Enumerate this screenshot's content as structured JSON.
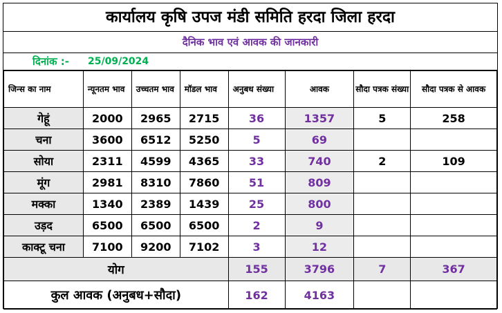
{
  "header": {
    "title": "कार्यालय कृषि उपज मंडी समिति हरदा जिला हरदा",
    "subtitle": "दैनिक भाव एवं आवक की जानकारी",
    "date_label": "दिनांक :-",
    "date_value": "25/09/2024"
  },
  "columns": [
    "जिन्स का नाम",
    "न्यूनतम भाव",
    "उच्चतम भाव",
    "मॉडल भाव",
    "अनुबध संख्या",
    "आवक",
    "सौदा पत्रक संख्या",
    "सौदा पत्रक से आवक"
  ],
  "rows": [
    {
      "name": "गेहूं",
      "min": "2000",
      "max": "2965",
      "model": "2715",
      "anubandh": "36",
      "aavak": "1357",
      "sauda_sankhya": "5",
      "sauda_aavak": "258"
    },
    {
      "name": "चना",
      "min": "3600",
      "max": "6512",
      "model": "5250",
      "anubandh": "5",
      "aavak": "69",
      "sauda_sankhya": "",
      "sauda_aavak": ""
    },
    {
      "name": "सोया",
      "min": "2311",
      "max": "4599",
      "model": "4365",
      "anubandh": "33",
      "aavak": "740",
      "sauda_sankhya": "2",
      "sauda_aavak": "109"
    },
    {
      "name": "मूंग",
      "min": "2981",
      "max": "8310",
      "model": "7860",
      "anubandh": "51",
      "aavak": "809",
      "sauda_sankhya": "",
      "sauda_aavak": ""
    },
    {
      "name": "मक्का",
      "min": "1340",
      "max": "2389",
      "model": "1439",
      "anubandh": "25",
      "aavak": "800",
      "sauda_sankhya": "",
      "sauda_aavak": ""
    },
    {
      "name": "उड़द",
      "min": "6500",
      "max": "6500",
      "model": "6500",
      "anubandh": "2",
      "aavak": "9",
      "sauda_sankhya": "",
      "sauda_aavak": ""
    },
    {
      "name": "काक्टू चना",
      "min": "7100",
      "max": "9200",
      "model": "7102",
      "anubandh": "3",
      "aavak": "12",
      "sauda_sankhya": "",
      "sauda_aavak": ""
    }
  ],
  "total": {
    "label": "योग",
    "anubandh": "155",
    "aavak": "3796",
    "sauda_sankhya": "7",
    "sauda_aavak": "367"
  },
  "grand_total": {
    "label": "कुल आवक (अनुबध+सौदा)",
    "anubandh": "162",
    "aavak": "4163"
  }
}
